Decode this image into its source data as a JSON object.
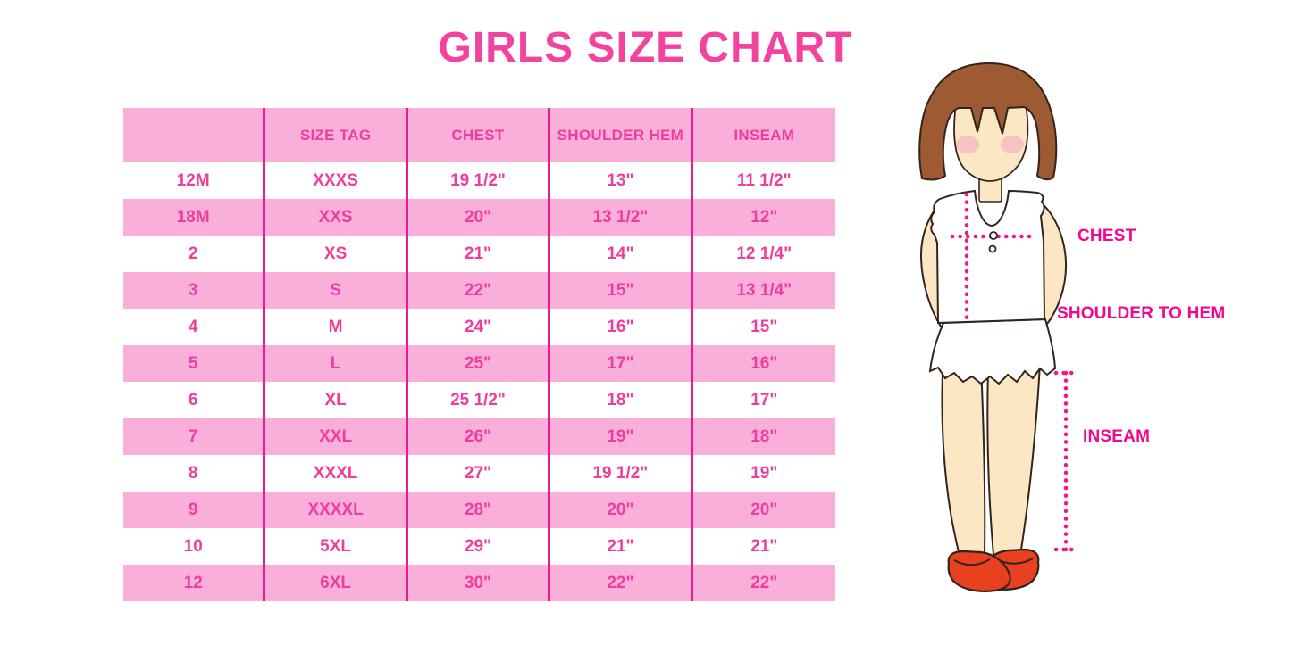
{
  "title": {
    "text": "GIRLS SIZE CHART"
  },
  "chart_data": {
    "type": "table",
    "title": "GIRLS SIZE CHART",
    "columns": [
      "",
      "SIZE TAG",
      "CHEST",
      "SHOULDER HEM",
      "INSEAM"
    ],
    "rows": [
      [
        "12M",
        "XXXS",
        "19 1/2\"",
        "13\"",
        "11 1/2\""
      ],
      [
        "18M",
        "XXS",
        "20\"",
        "13 1/2\"",
        "12\""
      ],
      [
        "2",
        "XS",
        "21\"",
        "14\"",
        "12 1/4\""
      ],
      [
        "3",
        "S",
        "22\"",
        "15\"",
        "13 1/4\""
      ],
      [
        "4",
        "M",
        "24\"",
        "16\"",
        "15\""
      ],
      [
        "5",
        "L",
        "25\"",
        "17\"",
        "16\""
      ],
      [
        "6",
        "XL",
        "25 1/2\"",
        "18\"",
        "17\""
      ],
      [
        "7",
        "XXL",
        "26\"",
        "19\"",
        "18\""
      ],
      [
        "8",
        "XXXL",
        "27\"",
        "19 1/2\"",
        "19\""
      ],
      [
        "9",
        "XXXXL",
        "28\"",
        "20\"",
        "20\""
      ],
      [
        "10",
        "5XL",
        "29\"",
        "21\"",
        "21\""
      ],
      [
        "12",
        "6XL",
        "30\"",
        "22\"",
        "22\""
      ]
    ]
  },
  "diagram": {
    "chest_label": "CHEST",
    "shoulder_to_hem_label": "SHOULDER TO HEM",
    "inseam_label": "INSEAM"
  },
  "colors": {
    "background": "#FFFFFF",
    "title-pink": "#F2439E",
    "stripe-pink": "#FAAFDB",
    "divider-magenta": "#E81C8E",
    "table-text-pink": "#EF3D9E",
    "label-magenta": "#F00890",
    "dotted-magenta": "#F5148C",
    "hair-brown": "#9D5A33",
    "skin": "#FBE7C4",
    "blush": "#F5AFC0",
    "shoe-red": "#E9401F",
    "outline-dark": "#33241B"
  }
}
